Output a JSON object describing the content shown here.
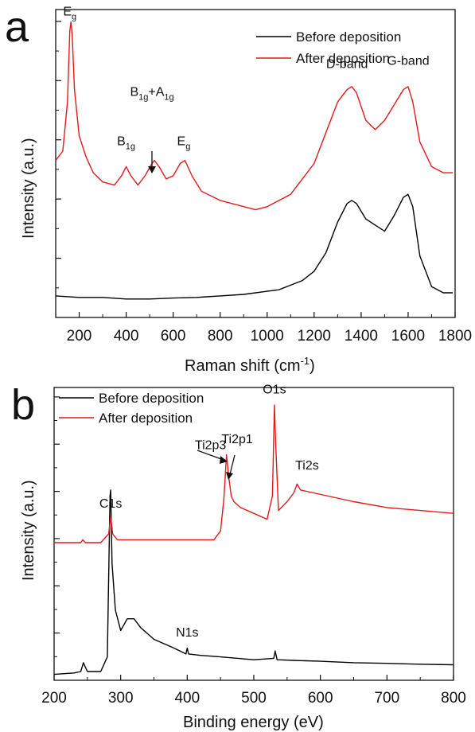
{
  "chart_data": [
    {
      "panel": "a",
      "type": "line",
      "xlabel": "Raman shift (cm",
      "xlabel_sup": "-1",
      "xlabel_suffix": ")",
      "ylabel": "Intensity (a.u.)",
      "xlim": [
        100,
        1800
      ],
      "ylim": [
        0,
        100
      ],
      "xticks": [
        200,
        400,
        600,
        800,
        1000,
        1200,
        1400,
        1600,
        1800
      ],
      "yticks_count": 5,
      "legend_position": "top-right",
      "series": [
        {
          "name": "Before deposition",
          "color": "#000000",
          "x": [
            100,
            200,
            300,
            400,
            500,
            600,
            700,
            800,
            900,
            1000,
            1050,
            1100,
            1150,
            1200,
            1250,
            1300,
            1340,
            1360,
            1380,
            1420,
            1460,
            1500,
            1540,
            1580,
            1600,
            1620,
            1650,
            1700,
            1750,
            1790
          ],
          "y": [
            7,
            6.5,
            6.5,
            6,
            6,
            6.3,
            6.5,
            7,
            7.5,
            8.5,
            9,
            10.5,
            12,
            15,
            21,
            31,
            37,
            38,
            37,
            32,
            30,
            28,
            33,
            39,
            40,
            36,
            20,
            10,
            8,
            8
          ]
        },
        {
          "name": "After deposition",
          "color": "#e31a1c",
          "x": [
            100,
            130,
            150,
            160,
            165,
            170,
            180,
            200,
            230,
            260,
            300,
            350,
            380,
            400,
            420,
            450,
            480,
            510,
            520,
            540,
            570,
            600,
            630,
            650,
            680,
            720,
            800,
            900,
            950,
            1000,
            1100,
            1200,
            1250,
            1300,
            1340,
            1360,
            1380,
            1420,
            1460,
            1500,
            1540,
            1580,
            1600,
            1620,
            1650,
            1700,
            1750,
            1790
          ],
          "y": [
            51,
            54,
            70,
            93,
            96,
            92,
            74,
            59,
            52,
            47,
            44,
            43,
            46,
            49,
            46,
            43,
            46,
            50,
            51,
            49,
            45,
            46,
            50,
            51,
            46,
            41,
            38,
            36,
            35,
            36,
            40,
            50,
            60,
            70,
            74,
            75,
            73,
            64,
            61,
            64,
            69,
            74,
            75,
            70,
            57,
            49,
            47,
            47
          ]
        }
      ],
      "annotations": [
        {
          "base": "E",
          "sub": "g",
          "x": 160,
          "y": 98
        },
        {
          "base": "B",
          "sub": "1g",
          "x": 400,
          "y": 56
        },
        {
          "base": "B",
          "sub": "1g",
          "mid": "+A",
          "sub2": "1g",
          "x": 510,
          "y": 72
        },
        {
          "base": "E",
          "sub": "g",
          "x": 645,
          "y": 56
        },
        {
          "text": "D-band",
          "x": 1340,
          "y": 81
        },
        {
          "text": "G-band",
          "x": 1600,
          "y": 82
        }
      ]
    },
    {
      "panel": "b",
      "type": "line",
      "xlabel": "Binding energy (eV)",
      "ylabel": "Intensity (a.u.)",
      "xlim": [
        200,
        800
      ],
      "ylim": [
        0,
        100
      ],
      "xticks": [
        200,
        300,
        400,
        500,
        600,
        700,
        800
      ],
      "yticks_count": 6,
      "legend_position": "top-left",
      "series": [
        {
          "name": "Before deposition",
          "color": "#000000",
          "x": [
            200,
            230,
            240,
            244,
            250,
            270,
            280,
            284,
            285,
            287,
            292,
            300,
            310,
            320,
            330,
            350,
            380,
            398,
            400,
            402,
            420,
            450,
            500,
            530,
            532,
            535,
            560,
            600,
            650,
            700,
            750,
            800
          ],
          "y": [
            2,
            2.5,
            3,
            6,
            3,
            3,
            8,
            63,
            65,
            40,
            24,
            17,
            21,
            21,
            18,
            14,
            11,
            9,
            11,
            9,
            8.5,
            8,
            7,
            7.5,
            10,
            7,
            6.8,
            6.5,
            6,
            5.8,
            5.5,
            5.3
          ]
        },
        {
          "name": "After deposition",
          "color": "#e31a1c",
          "x": [
            200,
            240,
            243,
            247,
            270,
            282,
            285,
            288,
            295,
            320,
            400,
            440,
            450,
            455,
            459,
            462,
            466,
            470,
            480,
            500,
            520,
            528,
            531,
            533,
            537,
            550,
            560,
            565,
            570,
            590,
            650,
            700,
            750,
            800
          ],
          "y": [
            47,
            47,
            48,
            47,
            47,
            50,
            56,
            50,
            48,
            48,
            48,
            48,
            51,
            62,
            77,
            70,
            63,
            61,
            59,
            57,
            55,
            63,
            94,
            80,
            58,
            61,
            64,
            67,
            65,
            64,
            61,
            59,
            58,
            57
          ]
        }
      ],
      "annotations": [
        {
          "text": "C1s",
          "x": 285,
          "y": 59
        },
        {
          "text": "N1s",
          "x": 400,
          "y": 15
        },
        {
          "text": "Ti2p3",
          "x": 435,
          "y": 79
        },
        {
          "text": "Ti2p1",
          "x": 475,
          "y": 81
        },
        {
          "text": "O1s",
          "x": 531,
          "y": 98
        },
        {
          "text": "Ti2s",
          "x": 580,
          "y": 72
        }
      ]
    }
  ]
}
